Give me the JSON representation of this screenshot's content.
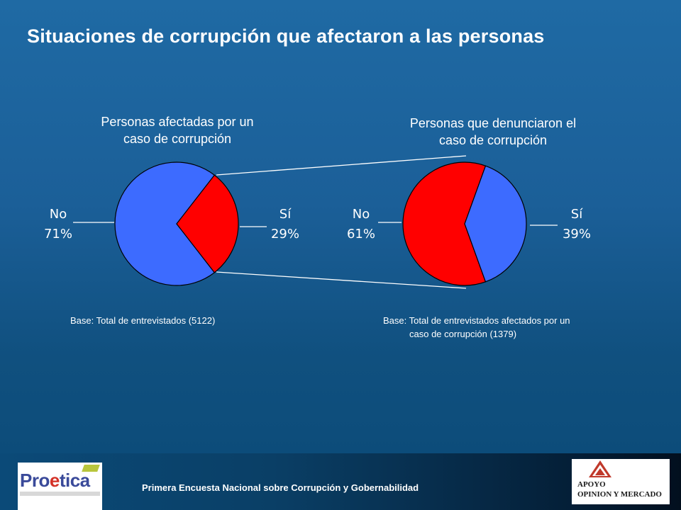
{
  "title": "Situaciones de corrupción que afectaron a las personas",
  "chart_data": [
    {
      "type": "pie",
      "title_lines": [
        "Personas afectadas por un",
        "caso de corrupción"
      ],
      "slices": [
        {
          "label": "No",
          "value": 71,
          "display": "71%",
          "color": "#3d6bff"
        },
        {
          "label": "Sí",
          "value": 29,
          "display": "29%",
          "color": "#ff0000"
        }
      ],
      "note": "Base: Total de entrevistados (5122)"
    },
    {
      "type": "pie",
      "title_lines": [
        "Personas que denunciaron el",
        "caso de corrupción"
      ],
      "slices": [
        {
          "label": "No",
          "value": 61,
          "display": "61%",
          "color": "#ff0000"
        },
        {
          "label": "Sí",
          "value": 39,
          "display": "39%",
          "color": "#3d6bff"
        }
      ],
      "note_lines": [
        "Base: Total de entrevistados afectados por un",
        "caso de corrupción (1379)"
      ]
    }
  ],
  "footer": {
    "survey_name": "Primera Encuesta Nacional sobre Corrupción y Gobernabilidad",
    "logo_left_text": "Proetica",
    "logo_right_lines": [
      "APOYO",
      "OPINION Y MERCADO"
    ]
  }
}
